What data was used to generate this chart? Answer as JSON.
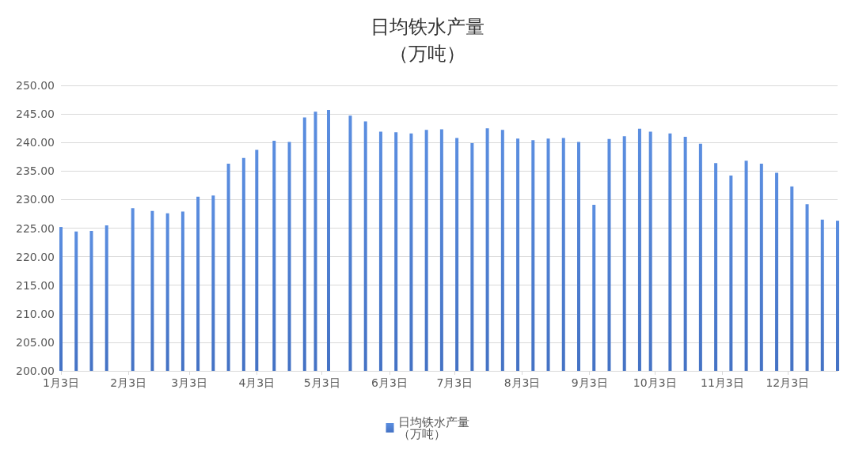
{
  "chart_data": {
    "type": "bar",
    "title": "日均铁水产量（万吨）",
    "x": [
      "--01-03",
      "--01-10",
      "--01-17",
      "--01-24",
      "--02-05",
      "--02-14",
      "--02-21",
      "--02-28",
      "--03-07",
      "--03-14",
      "--03-21",
      "--03-28",
      "--04-03",
      "--04-11",
      "--04-18",
      "--04-25",
      "--04-30",
      "--05-06",
      "--05-16",
      "--05-23",
      "--05-30",
      "--06-06",
      "--06-13",
      "--06-20",
      "--06-27",
      "--07-04",
      "--07-11",
      "--07-18",
      "--07-25",
      "--08-01",
      "--08-08",
      "--08-15",
      "--08-22",
      "--08-29",
      "--09-05",
      "--09-12",
      "--09-19",
      "--09-26",
      "--10-01",
      "--10-10",
      "--10-17",
      "--10-24",
      "--10-31",
      "--11-07",
      "--11-14",
      "--11-21",
      "--11-28",
      "--12-05",
      "--12-12",
      "--12-19",
      "--12-26"
    ],
    "series": [
      {
        "name": "日均铁水产量（万吨）",
        "color": "#4472c4",
        "values": [
          225.2,
          224.4,
          224.5,
          225.5,
          228.5,
          228.0,
          227.6,
          227.9,
          230.5,
          230.7,
          236.3,
          237.3,
          238.7,
          240.3,
          240.1,
          244.4,
          245.4,
          245.7,
          244.7,
          243.7,
          241.9,
          241.8,
          241.6,
          242.2,
          242.3,
          240.8,
          239.9,
          242.5,
          242.2,
          240.7,
          240.4,
          240.7,
          240.8,
          240.1,
          229.1,
          240.6,
          241.1,
          242.4,
          241.9,
          241.6,
          241.0,
          239.8,
          236.4,
          234.2,
          236.8,
          236.3,
          234.7,
          232.3,
          229.2,
          226.5,
          226.3
        ]
      }
    ],
    "xlim": [
      "--01-03",
      "--12-26"
    ],
    "xticks": [
      {
        "value": "--01-03",
        "label": "1月3日"
      },
      {
        "value": "--02-03",
        "label": "2月3日"
      },
      {
        "value": "--03-03",
        "label": "3月3日"
      },
      {
        "value": "--04-03",
        "label": "4月3日"
      },
      {
        "value": "--05-03",
        "label": "5月3日"
      },
      {
        "value": "--06-03",
        "label": "6月3日"
      },
      {
        "value": "--07-03",
        "label": "7月3日"
      },
      {
        "value": "--08-03",
        "label": "8月3日"
      },
      {
        "value": "--09-03",
        "label": "9月3日"
      },
      {
        "value": "--10-03",
        "label": "10月3日"
      },
      {
        "value": "--11-03",
        "label": "11月3日"
      },
      {
        "value": "--12-03",
        "label": "12月3日"
      }
    ],
    "ylim": [
      200,
      250
    ],
    "yticks": [
      {
        "value": 200,
        "label": "200.00"
      },
      {
        "value": 205,
        "label": "205.00"
      },
      {
        "value": 210,
        "label": "210.00"
      },
      {
        "value": 215,
        "label": "215.00"
      },
      {
        "value": 220,
        "label": "220.00"
      },
      {
        "value": 225,
        "label": "225.00"
      },
      {
        "value": 230,
        "label": "230.00"
      },
      {
        "value": 235,
        "label": "235.00"
      },
      {
        "value": 240,
        "label": "240.00"
      },
      {
        "value": 245,
        "label": "245.00"
      },
      {
        "value": 250,
        "label": "250.00"
      }
    ],
    "grid": "y",
    "legend": "bottom"
  }
}
